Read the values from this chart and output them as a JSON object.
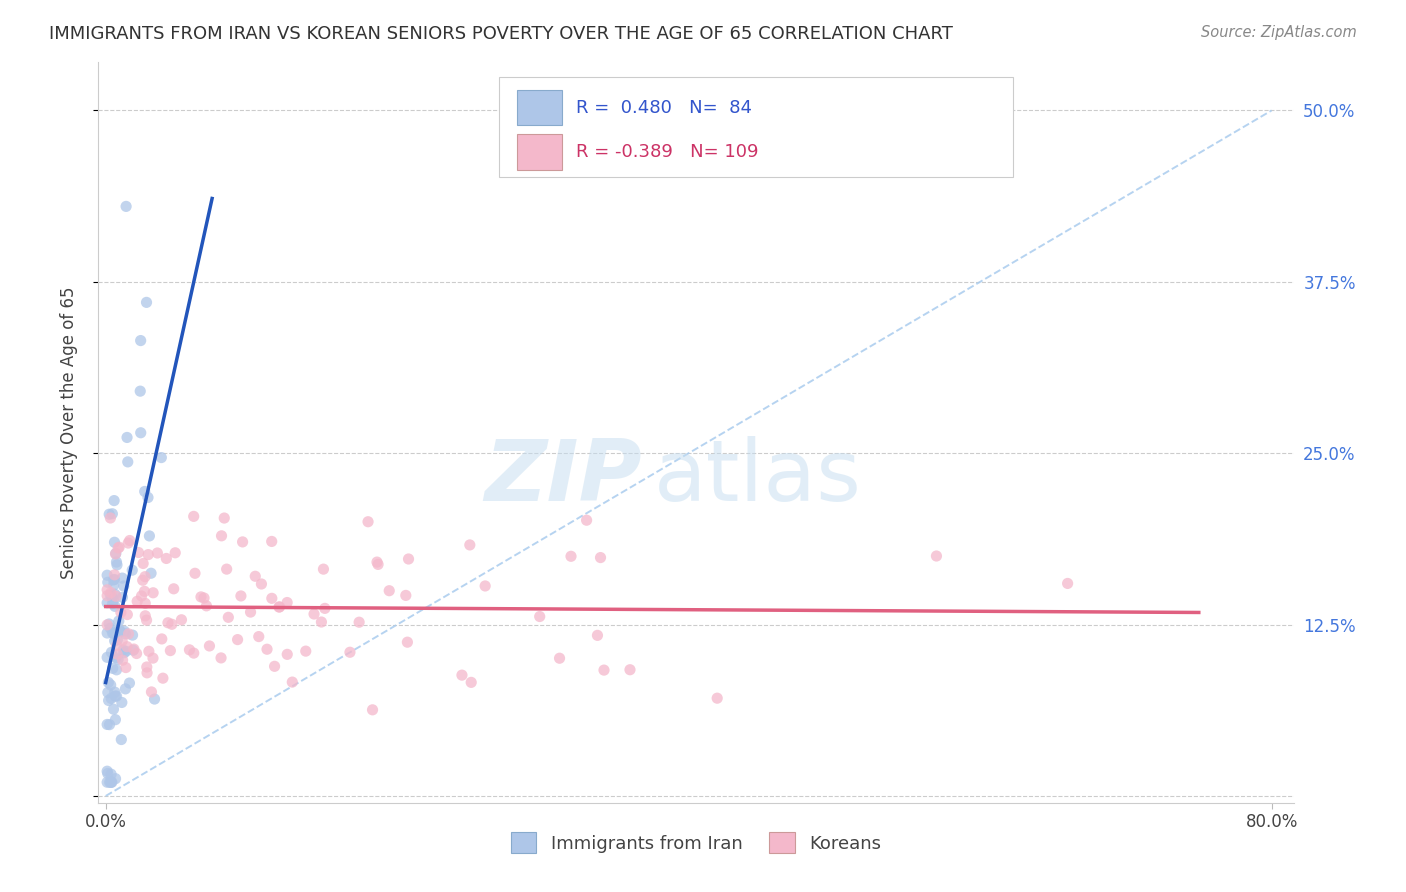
{
  "title": "IMMIGRANTS FROM IRAN VS KOREAN SENIORS POVERTY OVER THE AGE OF 65 CORRELATION CHART",
  "source": "Source: ZipAtlas.com",
  "ylabel": "Seniors Poverty Over the Age of 65",
  "legend_iran_label": "Immigrants from Iran",
  "legend_korean_label": "Koreans",
  "iran_R": 0.48,
  "iran_N": 84,
  "korean_R": -0.389,
  "korean_N": 109,
  "iran_color": "#aec6e8",
  "korean_color": "#f4b8cb",
  "iran_line_color": "#2255bb",
  "korean_line_color": "#e06080",
  "diag_line_color": "#aaccee",
  "background_color": "#ffffff",
  "xlim": [
    0.0,
    0.8
  ],
  "ylim": [
    0.0,
    0.52
  ],
  "yticks": [
    0.0,
    0.125,
    0.25,
    0.375,
    0.5
  ],
  "ytick_labels": [
    "",
    "12.5%",
    "25.0%",
    "37.5%",
    "50.0%"
  ],
  "right_ytick_labels": [
    "12.5%",
    "25.0%",
    "37.5%",
    "50.0%"
  ],
  "right_yticks": [
    0.125,
    0.25,
    0.375,
    0.5
  ],
  "xtick_labels": [
    "0.0%",
    "80.0%"
  ],
  "xticks": [
    0.0,
    0.8
  ],
  "iran_seed": 7,
  "korean_seed": 13,
  "watermark_zip": "ZIP",
  "watermark_atlas": "atlas"
}
